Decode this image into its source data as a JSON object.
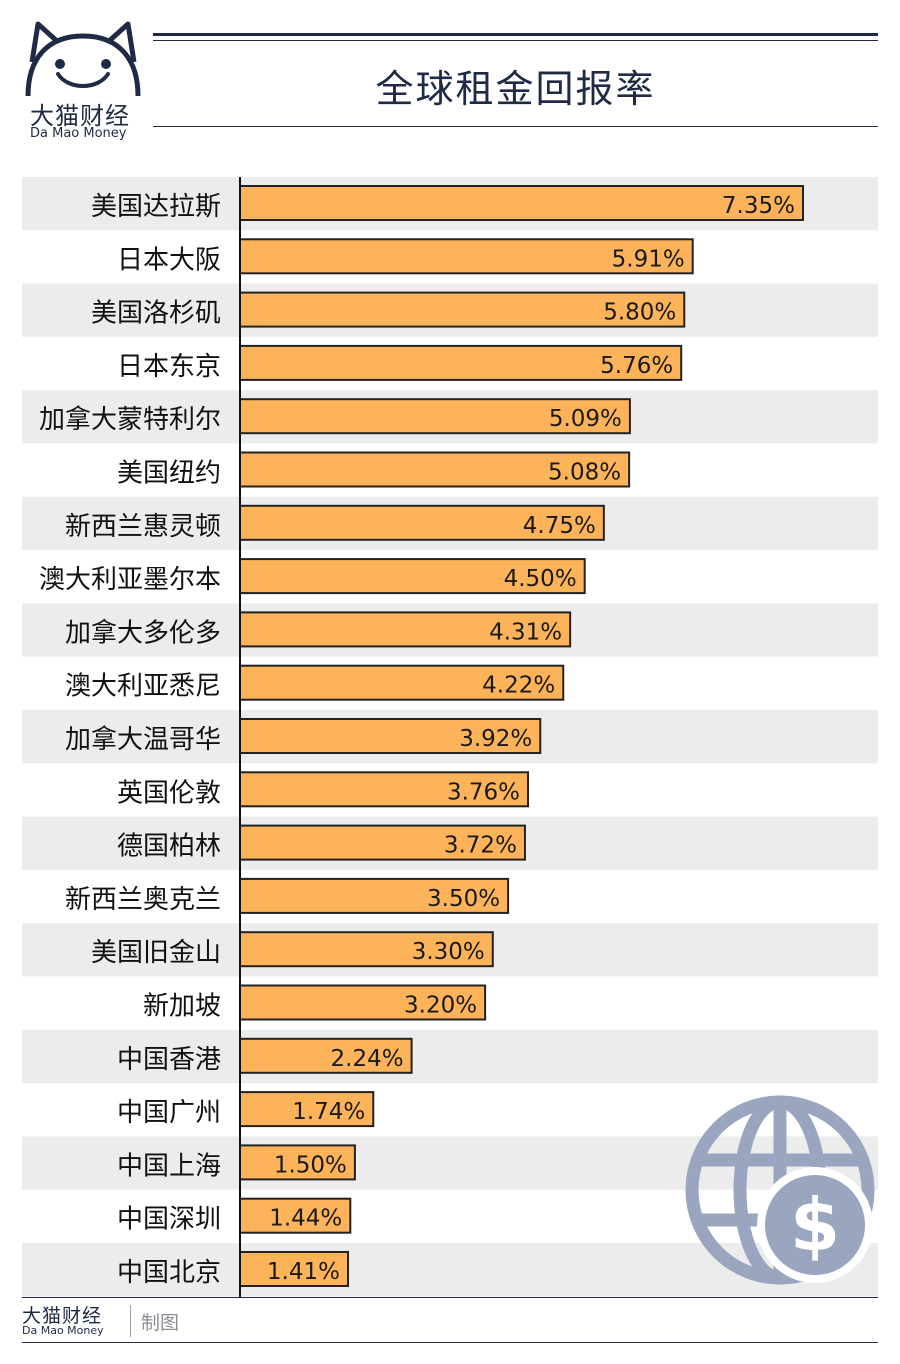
{
  "header": {
    "logo_cn": "大猫财经",
    "logo_en": "Da Mao Money",
    "title": "全球租金回报率"
  },
  "footer": {
    "logo_cn": "大猫财经",
    "logo_en": "Da Mao Money",
    "credit": "制图"
  },
  "colors": {
    "bar_fill": "#fdb35a",
    "bar_stroke": "#222222",
    "band": "#ececec",
    "ink": "#1f2a44",
    "globe": "#9aa5bf"
  },
  "decoration": {
    "icon": "globe-dollar-icon"
  },
  "chart_data": {
    "type": "bar",
    "orientation": "horizontal",
    "title": "全球租金回报率",
    "categories": [
      "美国达拉斯",
      "日本大阪",
      "美国洛杉矶",
      "日本东京",
      "加拿大蒙特利尔",
      "美国纽约",
      "新西兰惠灵顿",
      "澳大利亚墨尔本",
      "加拿大多伦多",
      "澳大利亚悉尼",
      "加拿大温哥华",
      "英国伦敦",
      "德国柏林",
      "新西兰奥克兰",
      "美国旧金山",
      "新加坡",
      "中国香港",
      "中国广州",
      "中国上海",
      "中国深圳",
      "中国北京"
    ],
    "values": [
      7.35,
      5.91,
      5.8,
      5.76,
      5.09,
      5.08,
      4.75,
      4.5,
      4.31,
      4.22,
      3.92,
      3.76,
      3.72,
      3.5,
      3.3,
      3.2,
      2.24,
      1.74,
      1.5,
      1.44,
      1.41
    ],
    "value_labels": [
      "7.35%",
      "5.91%",
      "5.80%",
      "5.76%",
      "5.09%",
      "5.08%",
      "4.75%",
      "4.50%",
      "4.31%",
      "4.22%",
      "3.92%",
      "3.76%",
      "3.72%",
      "3.50%",
      "3.30%",
      "3.20%",
      "2.24%",
      "1.74%",
      "1.50%",
      "1.44%",
      "1.41%"
    ],
    "unit": "%",
    "xlim": [
      0,
      8
    ],
    "grid": false,
    "legend": "none"
  }
}
